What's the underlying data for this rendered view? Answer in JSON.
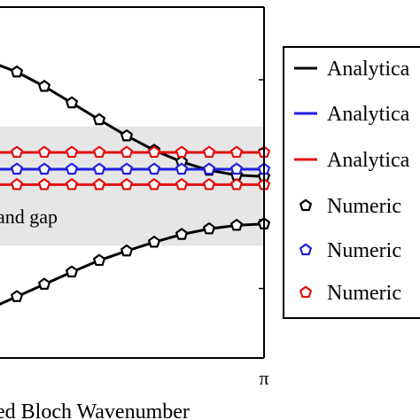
{
  "chart_data": {
    "type": "line",
    "xlabel": "ed Bloch Wavenumber",
    "x_tick_labels": [
      "π"
    ],
    "x": [
      0.0,
      0.1,
      0.2,
      0.3,
      0.4,
      0.5,
      0.6,
      0.7,
      0.8,
      0.9,
      1.0
    ],
    "xlim": [
      0.0,
      1.0
    ],
    "ylim": [
      0.0,
      1.0
    ],
    "band_gap": {
      "label": "and gap",
      "y_range": [
        0.32,
        0.66
      ],
      "color": "#e6e6e6"
    },
    "series": [
      {
        "name": "Analytica",
        "color": "#000000",
        "style": "line",
        "values": [
          0.845,
          0.815,
          0.774,
          0.727,
          0.679,
          0.633,
          0.592,
          0.559,
          0.535,
          0.521,
          0.517
        ]
      },
      {
        "name": "Analytica",
        "color": "#1f1fdd",
        "style": "line",
        "values": [
          0.538,
          0.538,
          0.538,
          0.538,
          0.538,
          0.538,
          0.538,
          0.538,
          0.538,
          0.538,
          0.538
        ]
      },
      {
        "name": "Analytica",
        "color": "#e01010",
        "style": "line",
        "values": [
          0.586,
          0.586,
          0.586,
          0.586,
          0.586,
          0.586,
          0.586,
          0.586,
          0.586,
          0.586,
          0.586
        ]
      },
      {
        "name": "Analytica",
        "color": "#e01010",
        "style": "line",
        "values": [
          0.494,
          0.494,
          0.494,
          0.494,
          0.494,
          0.494,
          0.494,
          0.494,
          0.494,
          0.494,
          0.494
        ]
      },
      {
        "name": "Numeric",
        "color": "#000000",
        "style": "markers",
        "values": [
          0.845,
          0.815,
          0.774,
          0.727,
          0.679,
          0.633,
          0.592,
          0.559,
          0.535,
          0.521,
          0.517
        ]
      },
      {
        "name": "Numeric",
        "color": "#1f1fdd",
        "style": "markers",
        "values": [
          0.538,
          0.538,
          0.538,
          0.538,
          0.538,
          0.538,
          0.538,
          0.538,
          0.538,
          0.538,
          0.538
        ]
      },
      {
        "name": "Numeric",
        "color": "#e01010",
        "style": "markers",
        "values": [
          0.586,
          0.586,
          0.586,
          0.586,
          0.586,
          0.586,
          0.586,
          0.586,
          0.586,
          0.586,
          0.586
        ]
      },
      {
        "name": "Numeric",
        "color": "#e01010",
        "style": "markers",
        "values": [
          0.494,
          0.494,
          0.494,
          0.494,
          0.494,
          0.494,
          0.494,
          0.494,
          0.494,
          0.494,
          0.494
        ]
      },
      {
        "name": "Analytica",
        "color": "#000000",
        "style": "line",
        "values": [
          0.14,
          0.175,
          0.21,
          0.245,
          0.278,
          0.305,
          0.33,
          0.352,
          0.368,
          0.378,
          0.382
        ]
      },
      {
        "name": "Numeric",
        "color": "#000000",
        "style": "markers",
        "values": [
          0.14,
          0.175,
          0.21,
          0.245,
          0.278,
          0.305,
          0.33,
          0.352,
          0.368,
          0.378,
          0.382
        ]
      }
    ],
    "legend": {
      "placement": "right",
      "entries": [
        {
          "label": "Analytica",
          "color": "#000000",
          "kind": "line"
        },
        {
          "label": "Analytica",
          "color": "#1f1fdd",
          "kind": "line"
        },
        {
          "label": "Analytica",
          "color": "#e01010",
          "kind": "line"
        },
        {
          "label": "Numeric",
          "color": "#000000",
          "kind": "marker"
        },
        {
          "label": "Numeric",
          "color": "#1f1fdd",
          "kind": "marker"
        },
        {
          "label": "Numeric",
          "color": "#e01010",
          "kind": "marker"
        }
      ]
    }
  }
}
